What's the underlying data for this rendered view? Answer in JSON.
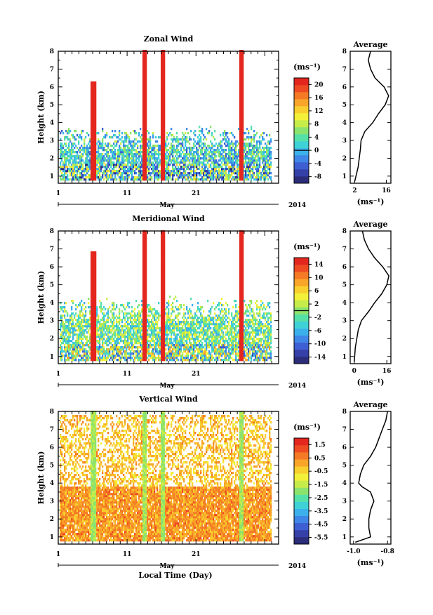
{
  "chart_data": [
    {
      "type": "heatmap",
      "title": "Zonal Wind",
      "ylabel": "Height (km)",
      "xlabel": "",
      "x_ticks": [
        "1",
        "11",
        "21"
      ],
      "xlim": [
        1,
        33
      ],
      "x_month": "May",
      "x_year": "2014",
      "y_ticks": [
        "1",
        "2",
        "3",
        "4",
        "5",
        "6",
        "7",
        "8"
      ],
      "ylim": [
        0.6,
        8
      ],
      "colorbar": {
        "unit": "(ms⁻¹)",
        "ticks": [
          "20",
          "16",
          "12",
          "8",
          "4",
          "0",
          "-4",
          "-8"
        ],
        "range": [
          -10,
          22
        ]
      },
      "features": [
        {
          "x0": 5.5,
          "x1": 6.5,
          "top": 6.3
        },
        {
          "x0": 13.2,
          "x1": 13.8,
          "top": 8
        },
        {
          "x0": 15.7,
          "x1": 16.3,
          "top": 8
        },
        {
          "x0": 27.1,
          "x1": 27.9,
          "top": 8
        }
      ],
      "average": {
        "title": "Average",
        "unit": "(ms⁻¹)",
        "x_ticks": [
          "2",
          "16"
        ],
        "xlim": [
          0,
          18
        ],
        "profile": [
          [
            0.7,
            2
          ],
          [
            1.5,
            3.5
          ],
          [
            2.5,
            4.5
          ],
          [
            3.0,
            4.8
          ],
          [
            3.5,
            6.5
          ],
          [
            4.0,
            10
          ],
          [
            4.5,
            12.5
          ],
          [
            5.0,
            15.5
          ],
          [
            5.5,
            17
          ],
          [
            6.0,
            15
          ],
          [
            6.5,
            11
          ],
          [
            7.0,
            9
          ],
          [
            7.5,
            8
          ],
          [
            8.0,
            9
          ]
        ]
      }
    },
    {
      "type": "heatmap",
      "title": "Meridional Wind",
      "ylabel": "Height (km)",
      "xlabel": "",
      "x_ticks": [
        "1",
        "11",
        "21"
      ],
      "xlim": [
        1,
        33
      ],
      "x_month": "May",
      "x_year": "2014",
      "y_ticks": [
        "1",
        "2",
        "3",
        "4",
        "5",
        "6",
        "7",
        "8"
      ],
      "ylim": [
        0.6,
        8
      ],
      "colorbar": {
        "unit": "(ms⁻¹)",
        "ticks": [
          "14",
          "10",
          "6",
          "2",
          "-2",
          "-6",
          "-10",
          "-14"
        ],
        "range": [
          -16,
          16
        ]
      },
      "features": [
        {
          "x0": 5.5,
          "x1": 6.5,
          "top": 6.8
        },
        {
          "x0": 13.2,
          "x1": 13.8,
          "top": 8
        },
        {
          "x0": 15.7,
          "x1": 16.3,
          "top": 8
        },
        {
          "x0": 27.1,
          "x1": 27.9,
          "top": 8
        }
      ],
      "average": {
        "title": "Average",
        "unit": "(ms⁻¹)",
        "x_ticks": [
          "0",
          "16"
        ],
        "xlim": [
          -2,
          18
        ],
        "profile": [
          [
            0.7,
            0
          ],
          [
            1.5,
            0.5
          ],
          [
            2.5,
            2
          ],
          [
            3.0,
            3.5
          ],
          [
            3.5,
            7
          ],
          [
            4.0,
            10
          ],
          [
            4.5,
            13.5
          ],
          [
            5.0,
            16
          ],
          [
            5.5,
            17
          ],
          [
            6.0,
            14
          ],
          [
            6.5,
            10
          ],
          [
            7.0,
            7
          ],
          [
            7.5,
            5
          ],
          [
            8.0,
            4
          ]
        ]
      }
    },
    {
      "type": "heatmap",
      "title": "Vertical Wind",
      "ylabel": "Height (km)",
      "xlabel": "Local Time (Day)",
      "x_ticks": [
        "1",
        "11",
        "21"
      ],
      "xlim": [
        1,
        33
      ],
      "x_month": "May",
      "x_year": "2014",
      "y_ticks": [
        "1",
        "2",
        "3",
        "4",
        "5",
        "6",
        "7",
        "8"
      ],
      "ylim": [
        0.6,
        8
      ],
      "colorbar": {
        "unit": "(ms⁻¹)",
        "ticks": [
          "1.5",
          "0.5",
          "-0.5",
          "-1.5",
          "-2.5",
          "-3.5",
          "-4.5",
          "-5.5"
        ],
        "range": [
          -6,
          2
        ]
      },
      "features": [
        {
          "x0": 5.5,
          "x1": 6.5,
          "top": 8
        },
        {
          "x0": 13.2,
          "x1": 13.8,
          "top": 8
        },
        {
          "x0": 15.7,
          "x1": 16.3,
          "top": 8
        },
        {
          "x0": 27.1,
          "x1": 27.9,
          "top": 8
        }
      ],
      "average": {
        "title": "Average",
        "unit": "(ms⁻¹)",
        "x_ticks": [
          "-1.0",
          "-0.8"
        ],
        "xlim": [
          -1.02,
          -0.78
        ],
        "profile": [
          [
            0.7,
            -0.99
          ],
          [
            1.0,
            -0.9
          ],
          [
            1.5,
            -0.91
          ],
          [
            2.0,
            -0.91
          ],
          [
            2.5,
            -0.9
          ],
          [
            3.0,
            -0.88
          ],
          [
            3.5,
            -0.9
          ],
          [
            3.8,
            -0.95
          ],
          [
            4.0,
            -0.97
          ],
          [
            4.5,
            -0.96
          ],
          [
            5.0,
            -0.94
          ],
          [
            5.5,
            -0.9
          ],
          [
            6.0,
            -0.87
          ],
          [
            6.5,
            -0.85
          ],
          [
            7.0,
            -0.83
          ],
          [
            7.5,
            -0.81
          ],
          [
            8.0,
            -0.8
          ]
        ]
      }
    }
  ]
}
